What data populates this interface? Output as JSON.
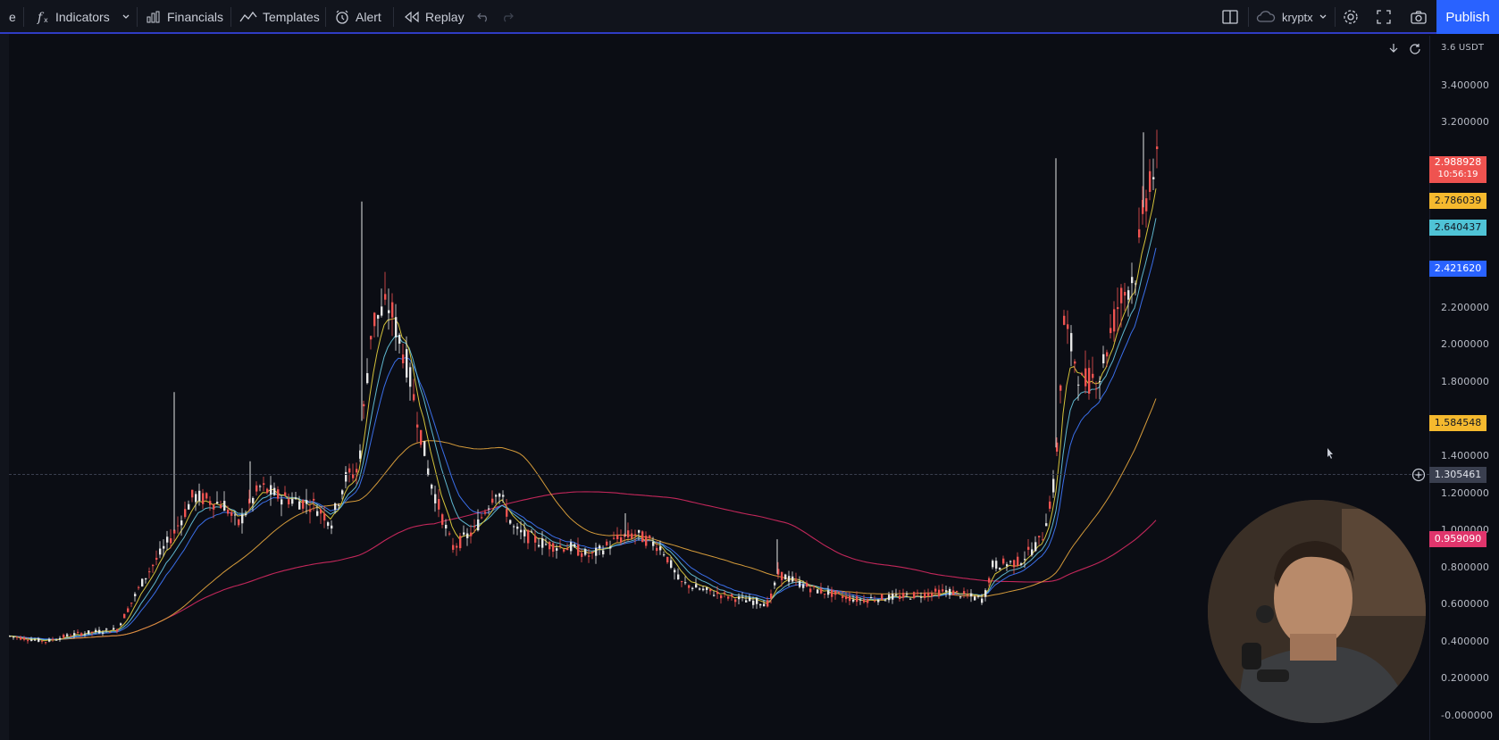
{
  "toolbar": {
    "cut_label": "e",
    "indicators_label": "Indicators",
    "financials_label": "Financials",
    "templates_label": "Templates",
    "alert_label": "Alert",
    "replay_label": "Replay",
    "layout_name": "kryptx",
    "publish_label": "Publish",
    "icons": [
      "function-icon",
      "chevron-down-icon",
      "financials-icon",
      "templates-icon",
      "alarm-clock-icon",
      "replay-icon",
      "undo-icon",
      "redo-icon",
      "layout-panel-icon",
      "cloud-icon",
      "gear-icon",
      "fullscreen-icon",
      "camera-icon"
    ]
  },
  "price_axis": {
    "currency_label": "3.6 USDT",
    "ticks": [
      "3.400000",
      "3.200000",
      "2.200000",
      "2.000000",
      "1.800000",
      "1.400000",
      "1.200000",
      "1.000000",
      "0.800000",
      "0.600000",
      "0.400000",
      "0.200000",
      "-0.000000"
    ],
    "badges": [
      {
        "value": "2.988928",
        "sub": "10:56:19",
        "color": "#ef5350"
      },
      {
        "value": "2.786039",
        "color": "#f5b92e"
      },
      {
        "value": "2.640437",
        "color": "#4fc3d6"
      },
      {
        "value": "2.421620",
        "color": "#2962ff"
      },
      {
        "value": "1.584548",
        "color": "#f5b92e"
      },
      {
        "value": "1.305461",
        "color": "#3a3f4f"
      },
      {
        "value": "0.959090",
        "color": "#e0356c"
      }
    ]
  },
  "colors": {
    "background": "#0b0d14",
    "up_candle": "#e6e6e6",
    "down_candle": "#ef5350",
    "ema_yellow": "#d4c23a",
    "ema_cyan": "#5fb7cf",
    "ema_blue": "#3a6ee8",
    "ma_orange": "#d49a3a",
    "ma_crimson": "#c2275a",
    "publish": "#2962ff"
  }
}
